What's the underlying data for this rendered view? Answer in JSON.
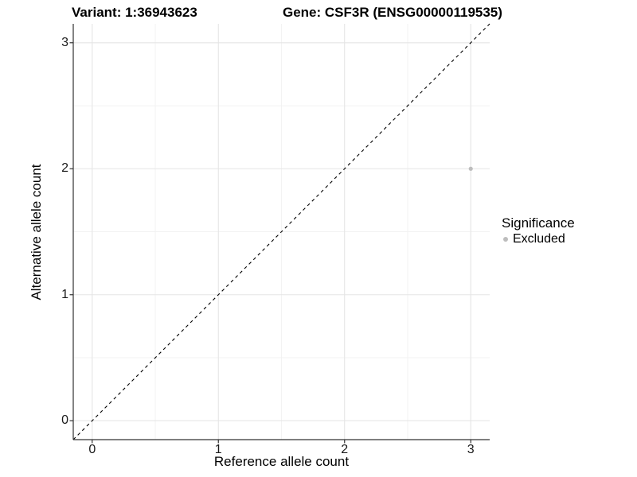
{
  "header": {
    "variant_title": "Variant: 1:36943623",
    "gene_title": "Gene: CSF3R (ENSG00000119535)"
  },
  "chart_data": {
    "type": "scatter",
    "xlabel": "Reference allele count",
    "ylabel": "Alternative allele count",
    "xlim": [
      -0.15,
      3.15
    ],
    "ylim": [
      -0.15,
      3.15
    ],
    "x_ticks": [
      0,
      1,
      2,
      3
    ],
    "y_ticks": [
      0,
      1,
      2,
      3
    ],
    "x_minor_ticks": [
      0.5,
      1.5,
      2.5
    ],
    "y_minor_ticks": [
      0.5,
      1.5,
      2.5
    ],
    "grid": "major+minor",
    "identity_line": {
      "style": "dashed",
      "color": "#000000",
      "x1": -0.15,
      "y1": -0.15,
      "x2": 3.15,
      "y2": 3.15
    },
    "series": [
      {
        "name": "Excluded",
        "color": "#bdbdbd",
        "points": [
          [
            3,
            2
          ]
        ]
      }
    ],
    "legend": {
      "title": "Significance",
      "position": "right",
      "entries": [
        {
          "label": "Excluded",
          "color": "#bdbdbd"
        }
      ]
    },
    "colors": {
      "grid_major": "#e5e5e5",
      "grid_minor": "#f2f2f2",
      "axis_line": "#333333",
      "tick_mark": "#333333",
      "background": "#ffffff"
    }
  }
}
